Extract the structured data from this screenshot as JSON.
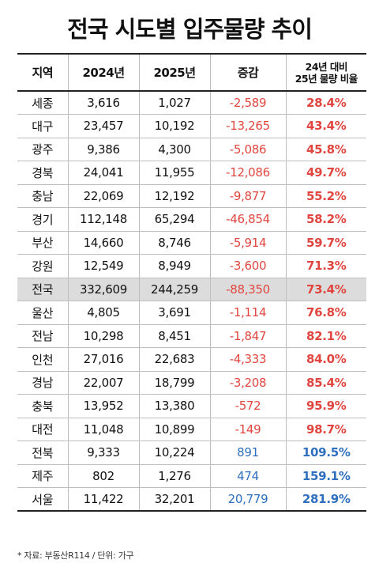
{
  "title": "전국 시도별 입주물량 추이",
  "headers": {
    "region": "지역",
    "y2024": "2024년",
    "y2025": "2025년",
    "change": "증감",
    "ratio_line1": "24년 대비",
    "ratio_line2": "25년 물량 비율"
  },
  "rows": [
    {
      "region": "세종",
      "y2024": "3,616",
      "y2025": "1,027",
      "change": "-2,589",
      "ratio": "28.4%",
      "trend": "down"
    },
    {
      "region": "대구",
      "y2024": "23,457",
      "y2025": "10,192",
      "change": "-13,265",
      "ratio": "43.4%",
      "trend": "down"
    },
    {
      "region": "광주",
      "y2024": "9,386",
      "y2025": "4,300",
      "change": "-5,086",
      "ratio": "45.8%",
      "trend": "down"
    },
    {
      "region": "경북",
      "y2024": "24,041",
      "y2025": "11,955",
      "change": "-12,086",
      "ratio": "49.7%",
      "trend": "down"
    },
    {
      "region": "충남",
      "y2024": "22,069",
      "y2025": "12,192",
      "change": "-9,877",
      "ratio": "55.2%",
      "trend": "down"
    },
    {
      "region": "경기",
      "y2024": "112,148",
      "y2025": "65,294",
      "change": "-46,854",
      "ratio": "58.2%",
      "trend": "down"
    },
    {
      "region": "부산",
      "y2024": "14,660",
      "y2025": "8,746",
      "change": "-5,914",
      "ratio": "59.7%",
      "trend": "down"
    },
    {
      "region": "강원",
      "y2024": "12,549",
      "y2025": "8,949",
      "change": "-3,600",
      "ratio": "71.3%",
      "trend": "down"
    },
    {
      "region": "전국",
      "y2024": "332,609",
      "y2025": "244,259",
      "change": "-88,350",
      "ratio": "73.4%",
      "trend": "down",
      "highlight": true
    },
    {
      "region": "울산",
      "y2024": "4,805",
      "y2025": "3,691",
      "change": "-1,114",
      "ratio": "76.8%",
      "trend": "down"
    },
    {
      "region": "전남",
      "y2024": "10,298",
      "y2025": "8,451",
      "change": "-1,847",
      "ratio": "82.1%",
      "trend": "down"
    },
    {
      "region": "인천",
      "y2024": "27,016",
      "y2025": "22,683",
      "change": "-4,333",
      "ratio": "84.0%",
      "trend": "down"
    },
    {
      "region": "경남",
      "y2024": "22,007",
      "y2025": "18,799",
      "change": "-3,208",
      "ratio": "85.4%",
      "trend": "down"
    },
    {
      "region": "충북",
      "y2024": "13,952",
      "y2025": "13,380",
      "change": "-572",
      "ratio": "95.9%",
      "trend": "down"
    },
    {
      "region": "대전",
      "y2024": "11,048",
      "y2025": "10,899",
      "change": "-149",
      "ratio": "98.7%",
      "trend": "down"
    },
    {
      "region": "전북",
      "y2024": "9,333",
      "y2025": "10,224",
      "change": "891",
      "ratio": "109.5%",
      "trend": "up"
    },
    {
      "region": "제주",
      "y2024": "802",
      "y2025": "1,276",
      "change": "474",
      "ratio": "159.1%",
      "trend": "up"
    },
    {
      "region": "서울",
      "y2024": "11,422",
      "y2025": "32,201",
      "change": "20,779",
      "ratio": "281.9%",
      "trend": "up"
    }
  ],
  "source": "* 자료: 부동산R114 / 단위: 가구",
  "colors": {
    "negative": "#e0463f",
    "positive": "#2f6fbf",
    "highlight_row": "#dcdcdc"
  }
}
